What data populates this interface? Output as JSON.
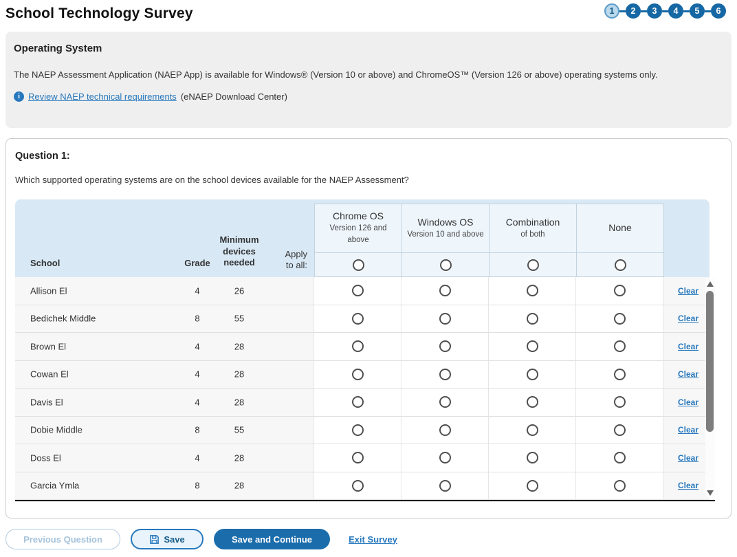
{
  "page": {
    "title": "School Technology Survey"
  },
  "stepper": {
    "steps": [
      "1",
      "2",
      "3",
      "4",
      "5",
      "6"
    ],
    "active_step": "1"
  },
  "info_panel": {
    "heading": "Operating System",
    "body": "The NAEP Assessment Application (NAEP App) is available for Windows® (Version 10 or above) and ChromeOS™ (Version 126 or above) operating systems only.",
    "info_icon": "info-icon",
    "link_text": "Review NAEP technical requirements",
    "link_suffix": "(eNAEP Download Center)"
  },
  "question": {
    "label": "Question 1:",
    "text": "Which supported operating systems are on the school devices available for the NAEP Assessment?"
  },
  "table": {
    "columns": {
      "school": "School",
      "grade": "Grade",
      "devices": "Minimum\ndevices\nneeded",
      "apply": "Apply\nto all:"
    },
    "os_options": [
      {
        "title": "Chrome OS",
        "subtitle": "Version 126 and\nabove"
      },
      {
        "title": "Windows OS",
        "subtitle": "Version 10 and above"
      },
      {
        "title": "Combination",
        "subtitle": "of both"
      },
      {
        "title": "None",
        "subtitle": ""
      }
    ],
    "clear_label": "Clear",
    "rows": [
      {
        "school": "Allison El",
        "grade": "4",
        "devices": "26"
      },
      {
        "school": "Bedichek Middle",
        "grade": "8",
        "devices": "55"
      },
      {
        "school": "Brown El",
        "grade": "4",
        "devices": "28"
      },
      {
        "school": "Cowan El",
        "grade": "4",
        "devices": "28"
      },
      {
        "school": "Davis El",
        "grade": "4",
        "devices": "28"
      },
      {
        "school": "Dobie Middle",
        "grade": "8",
        "devices": "55"
      },
      {
        "school": "Doss El",
        "grade": "4",
        "devices": "28"
      },
      {
        "school": "Garcia Ymla",
        "grade": "8",
        "devices": "28"
      }
    ]
  },
  "footer": {
    "previous_label": "Previous Question",
    "save_label": "Save",
    "save_continue_label": "Save and Continue",
    "exit_label": "Exit Survey"
  },
  "colors": {
    "primary_blue": "#1a6cab",
    "link_blue": "#2778bd",
    "header_band_bg": "#d8e8f5",
    "os_box_bg": "#eef5fb",
    "row_bg": "#f7f7f7",
    "active_step_bg": "#b9d8ec"
  }
}
